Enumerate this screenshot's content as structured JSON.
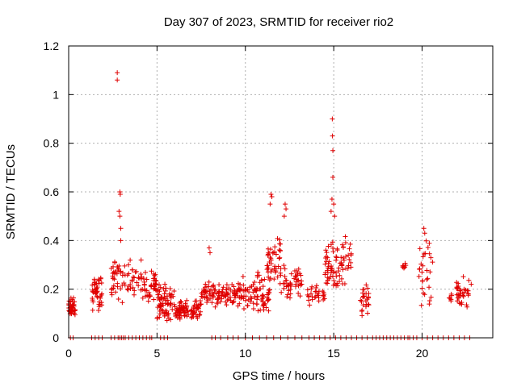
{
  "chart_data": {
    "type": "scatter",
    "title": "Day 307 of 2023, SRMTID for receiver rio2",
    "xlabel": "GPS time / hours",
    "ylabel": "SRMTID / TECUs",
    "xlim": [
      0,
      24
    ],
    "ylim": [
      0,
      1.2
    ],
    "x_ticks": [
      0,
      5,
      10,
      15,
      20
    ],
    "x_tick_labels": [
      "0",
      "5",
      "10",
      "15",
      "20"
    ],
    "y_ticks": [
      0,
      0.2,
      0.4,
      0.6,
      0.8,
      1.0,
      1.2
    ],
    "y_tick_labels": [
      "0",
      "0.2",
      "0.4",
      "0.6",
      "0.8",
      "1",
      "1.2"
    ],
    "grid": true,
    "marker": "plus",
    "series_color": "#e00000",
    "clusters": [
      {
        "x": [
          0.0,
          0.4
        ],
        "y": [
          0.08,
          0.18
        ],
        "n": 40
      },
      {
        "x": [
          1.3,
          1.9
        ],
        "y": [
          0.1,
          0.28
        ],
        "n": 45
      },
      {
        "x": [
          2.4,
          3.2
        ],
        "y": [
          0.12,
          0.35
        ],
        "n": 40
      },
      {
        "x": [
          3.3,
          4.2
        ],
        "y": [
          0.15,
          0.33
        ],
        "n": 30
      },
      {
        "x": [
          4.2,
          5.0
        ],
        "y": [
          0.14,
          0.28
        ],
        "n": 40
      },
      {
        "x": [
          5.0,
          6.0
        ],
        "y": [
          0.06,
          0.24
        ],
        "n": 70
      },
      {
        "x": [
          6.0,
          7.5
        ],
        "y": [
          0.07,
          0.16
        ],
        "n": 90
      },
      {
        "x": [
          7.5,
          8.3
        ],
        "y": [
          0.12,
          0.25
        ],
        "n": 40
      },
      {
        "x": [
          8.3,
          9.5
        ],
        "y": [
          0.12,
          0.24
        ],
        "n": 55
      },
      {
        "x": [
          9.5,
          10.6
        ],
        "y": [
          0.1,
          0.27
        ],
        "n": 50
      },
      {
        "x": [
          10.6,
          11.4
        ],
        "y": [
          0.07,
          0.3
        ],
        "n": 50
      },
      {
        "x": [
          11.2,
          12.0
        ],
        "y": [
          0.2,
          0.42
        ],
        "n": 45
      },
      {
        "x": [
          12.0,
          13.2
        ],
        "y": [
          0.15,
          0.3
        ],
        "n": 50
      },
      {
        "x": [
          13.5,
          14.5
        ],
        "y": [
          0.13,
          0.24
        ],
        "n": 30
      },
      {
        "x": [
          14.5,
          15.2
        ],
        "y": [
          0.15,
          0.42
        ],
        "n": 45
      },
      {
        "x": [
          15.2,
          16.0
        ],
        "y": [
          0.2,
          0.45
        ],
        "n": 35
      },
      {
        "x": [
          16.5,
          17.0
        ],
        "y": [
          0.08,
          0.26
        ],
        "n": 25
      },
      {
        "x": [
          18.9,
          19.1
        ],
        "y": [
          0.28,
          0.31
        ],
        "n": 8
      },
      {
        "x": [
          19.8,
          20.6
        ],
        "y": [
          0.12,
          0.42
        ],
        "n": 30
      },
      {
        "x": [
          21.5,
          21.7
        ],
        "y": [
          0.15,
          0.19
        ],
        "n": 6
      },
      {
        "x": [
          21.9,
          22.8
        ],
        "y": [
          0.11,
          0.26
        ],
        "n": 40
      }
    ],
    "outliers": [
      {
        "x": 2.75,
        "y": 1.09
      },
      {
        "x": 2.75,
        "y": 1.06
      },
      {
        "x": 2.9,
        "y": 0.6
      },
      {
        "x": 2.92,
        "y": 0.59
      },
      {
        "x": 2.85,
        "y": 0.52
      },
      {
        "x": 2.9,
        "y": 0.5
      },
      {
        "x": 2.95,
        "y": 0.45
      },
      {
        "x": 2.95,
        "y": 0.4
      },
      {
        "x": 14.92,
        "y": 0.9
      },
      {
        "x": 14.93,
        "y": 0.83
      },
      {
        "x": 14.95,
        "y": 0.77
      },
      {
        "x": 14.95,
        "y": 0.66
      },
      {
        "x": 14.9,
        "y": 0.57
      },
      {
        "x": 15.0,
        "y": 0.55
      },
      {
        "x": 15.05,
        "y": 0.5
      },
      {
        "x": 14.85,
        "y": 0.52
      },
      {
        "x": 11.45,
        "y": 0.59
      },
      {
        "x": 11.5,
        "y": 0.58
      },
      {
        "x": 11.4,
        "y": 0.55
      },
      {
        "x": 12.25,
        "y": 0.55
      },
      {
        "x": 12.3,
        "y": 0.53
      },
      {
        "x": 12.2,
        "y": 0.5
      },
      {
        "x": 4.1,
        "y": 0.32
      },
      {
        "x": 7.95,
        "y": 0.37
      },
      {
        "x": 8.0,
        "y": 0.35
      },
      {
        "x": 20.1,
        "y": 0.45
      },
      {
        "x": 20.15,
        "y": 0.43
      }
    ],
    "zero_points_x": [
      1.3,
      1.5,
      1.7,
      1.9,
      2.4,
      2.6,
      2.8,
      2.9,
      3.0,
      3.1,
      3.2,
      3.4,
      3.6,
      3.8,
      4.0,
      4.2,
      4.4,
      4.6,
      4.7,
      5.2,
      5.4,
      5.6,
      8.1,
      8.3,
      8.6,
      9.0,
      9.3,
      9.6,
      10.0,
      10.4,
      10.8,
      11.2,
      11.6,
      12.0,
      12.4,
      12.8,
      13.2,
      13.6,
      13.9,
      14.2,
      14.5,
      14.8,
      15.1,
      15.4,
      15.7,
      16.0,
      16.3,
      16.6,
      16.9,
      17.2,
      17.4,
      17.6,
      17.8,
      18.0,
      18.2,
      18.4,
      18.6,
      18.8,
      19.0,
      19.2,
      19.3,
      19.5,
      19.7,
      20.0,
      20.3,
      20.6,
      20.9,
      21.2,
      21.5,
      21.8,
      22.1,
      22.4,
      22.7,
      0.1,
      0.25
    ]
  }
}
